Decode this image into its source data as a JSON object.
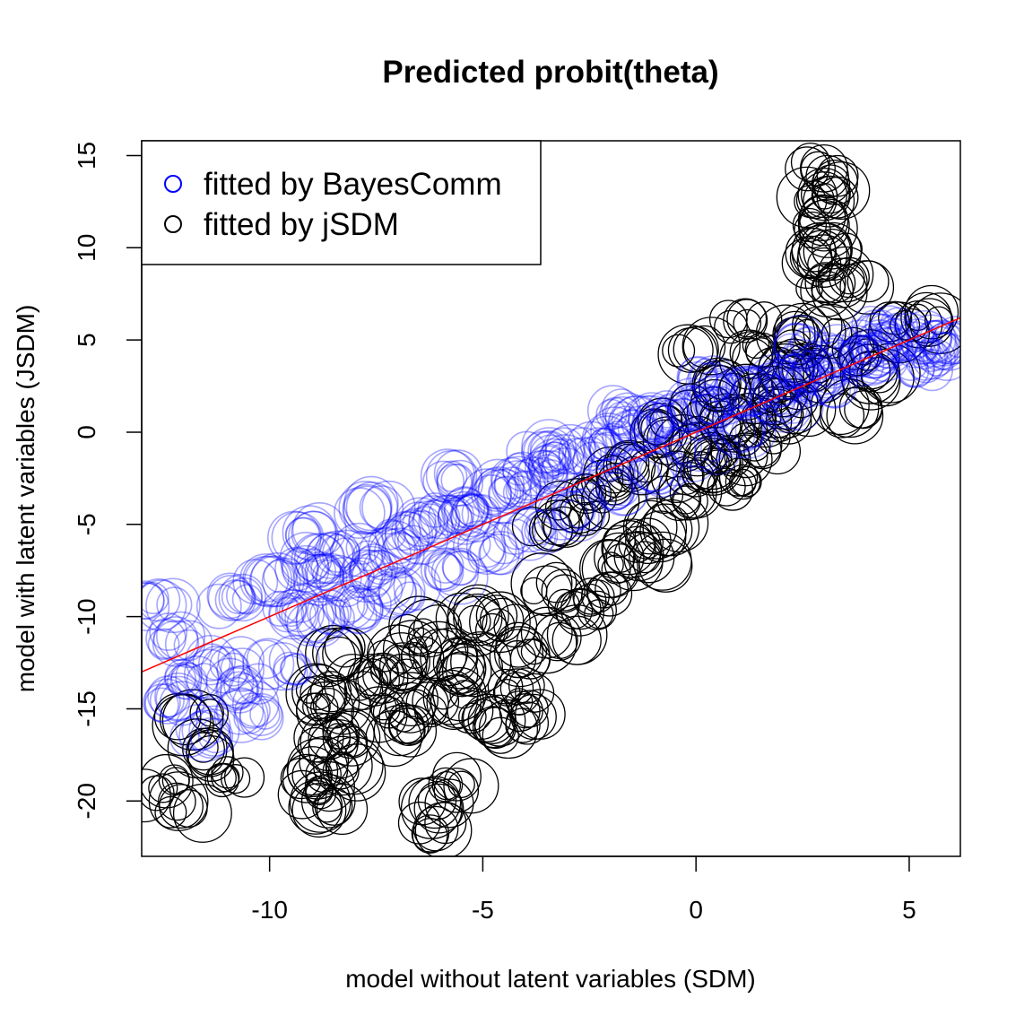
{
  "chart_data": {
    "type": "scatter",
    "title": "Predicted probit(theta)",
    "xlabel": "model without latent variables (SDM)",
    "ylabel": "model with latent variables (JSDM)",
    "xlim": [
      -13,
      6.2
    ],
    "ylim": [
      -23,
      15.8
    ],
    "xticks": [
      -10,
      -5,
      0,
      5
    ],
    "xtick_labels": [
      "-10",
      "-5",
      "0",
      "5"
    ],
    "yticks": [
      -20,
      -15,
      -10,
      -5,
      0,
      5,
      10,
      15
    ],
    "ytick_labels": [
      "-20",
      "-15",
      "-10",
      "-5",
      "0",
      "5",
      "10",
      "15"
    ],
    "grid": false,
    "legend_position": "top-left",
    "reference_line": {
      "color": "#ff0000",
      "intercept": 0,
      "slope": 1
    },
    "series": [
      {
        "name": "fitted by jSDM",
        "color": "#000000",
        "marker": "open-circle",
        "points": [
          [
            -12.5,
            -19.3
          ],
          [
            -11.9,
            -20.4
          ],
          [
            -11.8,
            -15.6
          ],
          [
            -11.4,
            -17.3
          ],
          [
            -10.8,
            -18.8
          ],
          [
            -9.0,
            -18.6
          ],
          [
            -8.8,
            -19.6
          ],
          [
            -8.5,
            -20.3
          ],
          [
            -8.3,
            -18.2
          ],
          [
            -8.6,
            -16.8
          ],
          [
            -8.1,
            -16.4
          ],
          [
            -8.9,
            -14.2
          ],
          [
            -8.5,
            -12.0
          ],
          [
            -8.7,
            -15.1
          ],
          [
            -7.6,
            -13.6
          ],
          [
            -7.2,
            -15.2
          ],
          [
            -6.9,
            -13.1
          ],
          [
            -6.7,
            -16.2
          ],
          [
            -6.3,
            -14.7
          ],
          [
            -6.0,
            -12.1
          ],
          [
            -5.6,
            -14.6
          ],
          [
            -5.2,
            -12.8
          ],
          [
            -4.9,
            -15.5
          ],
          [
            -4.4,
            -16.1
          ],
          [
            -4.2,
            -13.9
          ],
          [
            -3.9,
            -15.0
          ],
          [
            -6.2,
            -20.4
          ],
          [
            -6.1,
            -21.5
          ],
          [
            -5.5,
            -19.1
          ],
          [
            -3.8,
            -11.9
          ],
          [
            -3.2,
            -11.3
          ],
          [
            -2.7,
            -9.6
          ],
          [
            -2.3,
            -8.9
          ],
          [
            -2.0,
            -7.2
          ],
          [
            -1.5,
            -6.3
          ],
          [
            -1.1,
            -6.8
          ],
          [
            -0.7,
            -5.3
          ],
          [
            -0.4,
            -3.6
          ],
          [
            0.0,
            -2.5
          ],
          [
            0.4,
            -1.8
          ],
          [
            0.8,
            -1.2
          ],
          [
            1.1,
            -2.7
          ],
          [
            1.5,
            -0.7
          ],
          [
            1.9,
            0.9
          ],
          [
            2.3,
            1.4
          ],
          [
            2.6,
            3.5
          ],
          [
            2.9,
            5.4
          ],
          [
            3.1,
            7.8
          ],
          [
            3.2,
            9.8
          ],
          [
            3.0,
            11.2
          ],
          [
            2.8,
            12.6
          ],
          [
            3.4,
            13.1
          ],
          [
            3.0,
            14.3
          ],
          [
            3.6,
            8.3
          ],
          [
            4.0,
            4.2
          ],
          [
            5.4,
            6.2
          ],
          [
            0.2,
            1.1
          ],
          [
            0.6,
            2.7
          ],
          [
            1.3,
            4.3
          ],
          [
            -0.9,
            0.2
          ],
          [
            -1.6,
            -1.7
          ],
          [
            -2.4,
            -3.3
          ],
          [
            -3.4,
            -5.3
          ],
          [
            -3.5,
            -8.6
          ],
          [
            -4.6,
            -10.3
          ],
          [
            -5.5,
            -10.1
          ],
          [
            -6.4,
            -10.9
          ],
          [
            -7.0,
            -12.1
          ],
          [
            -2.8,
            -4.3
          ],
          [
            -1.9,
            -2.6
          ],
          [
            -0.3,
            -0.6
          ],
          [
            0.9,
            0.4
          ],
          [
            1.6,
            2.1
          ],
          [
            2.1,
            3.1
          ],
          [
            2.5,
            4.9
          ],
          [
            3.6,
            1.3
          ],
          [
            4.3,
            3.1
          ],
          [
            4.9,
            5.8
          ],
          [
            1.2,
            5.9
          ],
          [
            0.0,
            4.5
          ],
          [
            2.7,
            9.5
          ]
        ]
      },
      {
        "name": "fitted by BayesComm",
        "color": "#0000ff",
        "marker": "open-circle",
        "points": [
          [
            -12.6,
            -9.1
          ],
          [
            -12.4,
            -14.6
          ],
          [
            -12.2,
            -11.2
          ],
          [
            -11.7,
            -13.3
          ],
          [
            -11.0,
            -12.6
          ],
          [
            -10.8,
            -9.1
          ],
          [
            -10.4,
            -15.1
          ],
          [
            -10.0,
            -8.1
          ],
          [
            -9.5,
            -9.7
          ],
          [
            -9.0,
            -7.2
          ],
          [
            -8.6,
            -7.8
          ],
          [
            -8.2,
            -6.6
          ],
          [
            -7.7,
            -7.6
          ],
          [
            -7.3,
            -6.6
          ],
          [
            -6.8,
            -5.6
          ],
          [
            -6.3,
            -5.1
          ],
          [
            -5.8,
            -4.5
          ],
          [
            -5.3,
            -4.3
          ],
          [
            -4.8,
            -3.4
          ],
          [
            -4.3,
            -2.9
          ],
          [
            -3.8,
            -2.4
          ],
          [
            -3.3,
            -1.8
          ],
          [
            -2.8,
            -1.3
          ],
          [
            -2.3,
            -0.7
          ],
          [
            -1.8,
            -0.3
          ],
          [
            -1.3,
            0.2
          ],
          [
            -0.8,
            0.6
          ],
          [
            -0.3,
            1.0
          ],
          [
            0.2,
            1.3
          ],
          [
            0.7,
            1.8
          ],
          [
            1.2,
            2.2
          ],
          [
            1.7,
            2.6
          ],
          [
            2.2,
            3.0
          ],
          [
            2.7,
            3.4
          ],
          [
            3.2,
            3.8
          ],
          [
            3.7,
            4.2
          ],
          [
            4.2,
            4.6
          ],
          [
            4.7,
            5.0
          ],
          [
            5.2,
            5.1
          ],
          [
            5.7,
            4.4
          ],
          [
            6.0,
            4.8
          ],
          [
            -9.7,
            -12.7
          ],
          [
            -10.6,
            -13.9
          ],
          [
            -11.6,
            -16.2
          ],
          [
            -8.8,
            -10.1
          ],
          [
            -7.9,
            -9.6
          ],
          [
            -6.9,
            -8.6
          ],
          [
            -5.9,
            -7.6
          ],
          [
            -4.9,
            -6.4
          ],
          [
            -3.9,
            -5.3
          ],
          [
            -2.9,
            -4.3
          ],
          [
            -1.9,
            -3.2
          ],
          [
            -0.9,
            -2.1
          ],
          [
            0.1,
            -0.9
          ],
          [
            1.1,
            0.2
          ],
          [
            2.1,
            1.4
          ],
          [
            3.1,
            2.6
          ],
          [
            4.1,
            3.9
          ],
          [
            -9.2,
            -5.6
          ],
          [
            -7.6,
            -4.1
          ],
          [
            -5.6,
            -2.6
          ],
          [
            -3.6,
            -1.1
          ],
          [
            -1.6,
            0.9
          ],
          [
            0.4,
            2.9
          ],
          [
            2.4,
            4.6
          ],
          [
            4.4,
            5.6
          ],
          [
            5.4,
            3.6
          ]
        ]
      }
    ]
  },
  "legend": {
    "items": [
      {
        "label": "fitted by BayesComm",
        "color": "#0000ff"
      },
      {
        "label": "fitted by jSDM",
        "color": "#000000"
      }
    ]
  }
}
